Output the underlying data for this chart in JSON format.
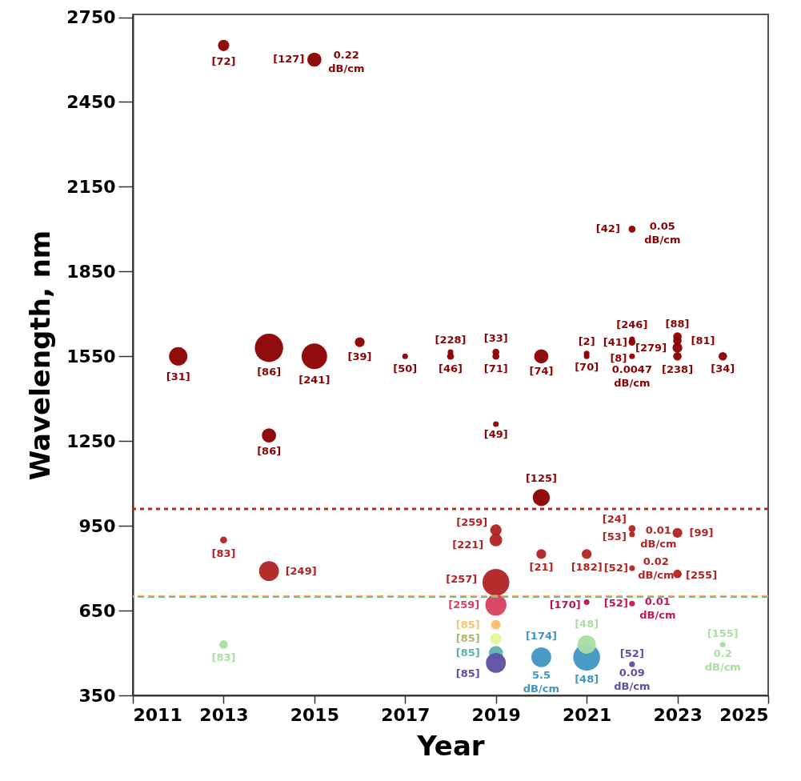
{
  "chart_data": {
    "type": "bubble",
    "xlabel": "Year",
    "ylabel": "Wavelength, nm",
    "xlim": [
      2011,
      2025
    ],
    "xticks": [
      2011,
      2013,
      2015,
      2017,
      2019,
      2021,
      2023,
      2025
    ],
    "ylim": [
      350,
      2760
    ],
    "yticks": [
      350,
      650,
      950,
      1250,
      1550,
      1850,
      2150,
      2450,
      2750
    ],
    "grid": false,
    "legend": false,
    "marker": "circle",
    "x": [
      2012,
      2013,
      2013,
      2013,
      2014,
      2014,
      2014,
      2015,
      2015,
      2016,
      2017,
      2018,
      2018,
      2019,
      2019,
      2019,
      2019,
      2019,
      2019,
      2019,
      2019,
      2019,
      2019,
      2019,
      2020,
      2020,
      2020,
      2020,
      2021,
      2021,
      2021,
      2021,
      2021,
      2021,
      2022,
      2022,
      2022,
      2022,
      2022,
      2022,
      2022,
      2022,
      2022,
      2023,
      2023,
      2023,
      2023,
      2023,
      2023,
      2024,
      2024
    ],
    "values": [
      1550,
      2650,
      900,
      530,
      1580,
      1270,
      790,
      2600,
      1550,
      1600,
      1550,
      1565,
      1550,
      1565,
      1550,
      1310,
      935,
      900,
      750,
      670,
      600,
      550,
      500,
      465,
      1550,
      1050,
      850,
      485,
      1560,
      1550,
      850,
      680,
      485,
      530,
      2000,
      1610,
      1600,
      1550,
      940,
      920,
      800,
      675,
      460,
      1620,
      1605,
      1580,
      1550,
      925,
      780,
      1550,
      530
    ],
    "sizes": [
      0.42,
      0.16,
      0.06,
      0.09,
      1,
      0.25,
      0.49,
      0.25,
      0.81,
      0.12,
      0.04,
      0.04,
      0.06,
      0.06,
      0.06,
      0.04,
      0.16,
      0.2,
      0.9,
      0.56,
      0.12,
      0.16,
      0.25,
      0.49,
      0.25,
      0.36,
      0.12,
      0.49,
      0.04,
      0.04,
      0.12,
      0.04,
      0.9,
      0.42,
      0.06,
      0.04,
      0.06,
      0.04,
      0.06,
      0.04,
      0.04,
      0.04,
      0.04,
      0.09,
      0.09,
      0.12,
      0.09,
      0.12,
      0.09,
      0.09,
      0.04
    ],
    "colors": [
      "#8b0000",
      "#8b0000",
      "#b22222",
      "#abdda4",
      "#8b0000",
      "#8b0000",
      "#b22222",
      "#8b0000",
      "#8b0000",
      "#8b0000",
      "#8b0000",
      "#8b0000",
      "#8b0000",
      "#8b0000",
      "#8b0000",
      "#8b0000",
      "#b22222",
      "#b22222",
      "#b22222",
      "#d6405e",
      "#fdbf6f",
      "#e6f598",
      "#5ab4ac",
      "#5e4fa2",
      "#8b0000",
      "#8b0000",
      "#b22222",
      "#3f96c3",
      "#8b0000",
      "#8b0000",
      "#b22222",
      "#b0184f",
      "#3f96c3",
      "#abdda4",
      "#8b0000",
      "#8b0000",
      "#8b0000",
      "#8b0000",
      "#b22222",
      "#b22222",
      "#b22222",
      "#c2185b",
      "#5e4fa2",
      "#8b0000",
      "#8b0000",
      "#8b0000",
      "#8b0000",
      "#b22222",
      "#b22222",
      "#8b0000",
      "#abdda4"
    ],
    "ref_lines": [
      {
        "axis": "y",
        "value": 1010,
        "color": "#c81e1e",
        "line_style": "dotted"
      },
      {
        "axis": "y",
        "value": 702,
        "color": "#fdae61",
        "line_style": "dashed"
      },
      {
        "axis": "y",
        "value": 698,
        "color": "#66c2a5",
        "line_style": "dashed"
      }
    ],
    "annotations": [
      {
        "text": "[31]",
        "x": 2012,
        "y": 1550
      },
      {
        "text": "[72]",
        "x": 2013,
        "y": 2650
      },
      {
        "text": "[127]",
        "x": 2015,
        "y": 2600
      },
      {
        "text": "0.22 dB/cm",
        "x": 2015,
        "y": 2600
      },
      {
        "text": "[86]",
        "x": 2014,
        "y": 1580
      },
      {
        "text": "[86]",
        "x": 2014,
        "y": 1270
      },
      {
        "text": "[249]",
        "x": 2014,
        "y": 790
      },
      {
        "text": "[83]",
        "x": 2013,
        "y": 900
      },
      {
        "text": "[83]",
        "x": 2013,
        "y": 530
      },
      {
        "text": "[241]",
        "x": 2015,
        "y": 1550
      },
      {
        "text": "[39]",
        "x": 2016,
        "y": 1600
      },
      {
        "text": "[50]",
        "x": 2017,
        "y": 1550
      },
      {
        "text": "[228]",
        "x": 2018,
        "y": 1565
      },
      {
        "text": "[46]",
        "x": 2018,
        "y": 1550
      },
      {
        "text": "[33]",
        "x": 2019,
        "y": 1565
      },
      {
        "text": "[71]",
        "x": 2019,
        "y": 1550
      },
      {
        "text": "[49]",
        "x": 2019,
        "y": 1310
      },
      {
        "text": "[259]",
        "x": 2019,
        "y": 935
      },
      {
        "text": "[221]",
        "x": 2019,
        "y": 900
      },
      {
        "text": "[257]",
        "x": 2019,
        "y": 750
      },
      {
        "text": "[259]",
        "x": 2019,
        "y": 670
      },
      {
        "text": "[85]",
        "x": 2019,
        "y": 600
      },
      {
        "text": "[85]",
        "x": 2019,
        "y": 550
      },
      {
        "text": "[85]",
        "x": 2019,
        "y": 500
      },
      {
        "text": "[85]",
        "x": 2019,
        "y": 465
      },
      {
        "text": "[74]",
        "x": 2020,
        "y": 1550
      },
      {
        "text": "[125]",
        "x": 2020,
        "y": 1050
      },
      {
        "text": "[21]",
        "x": 2020,
        "y": 850
      },
      {
        "text": "[174]",
        "x": 2020,
        "y": 485
      },
      {
        "text": "5.5 dB/cm",
        "x": 2020,
        "y": 485
      },
      {
        "text": "[2]",
        "x": 2021,
        "y": 1560
      },
      {
        "text": "[70]",
        "x": 2021,
        "y": 1550
      },
      {
        "text": "[182]",
        "x": 2021,
        "y": 850
      },
      {
        "text": "[170]",
        "x": 2021,
        "y": 680
      },
      {
        "text": "[48]",
        "x": 2021,
        "y": 530
      },
      {
        "text": "[48]",
        "x": 2021,
        "y": 485
      },
      {
        "text": "[42]",
        "x": 2022,
        "y": 2000
      },
      {
        "text": "0.05 dB/cm",
        "x": 2022,
        "y": 2000
      },
      {
        "text": "[246]",
        "x": 2022,
        "y": 1610
      },
      {
        "text": "[41]",
        "x": 2022,
        "y": 1600
      },
      {
        "text": "[8]",
        "x": 2022,
        "y": 1550
      },
      {
        "text": "0.0047 dB/cm",
        "x": 2022,
        "y": 1550
      },
      {
        "text": "[24]",
        "x": 2022,
        "y": 940
      },
      {
        "text": "[53]",
        "x": 2022,
        "y": 920
      },
      {
        "text": "0.01 dB/cm",
        "x": 2022,
        "y": 920
      },
      {
        "text": "[99]",
        "x": 2023,
        "y": 925
      },
      {
        "text": "[52]",
        "x": 2022,
        "y": 800
      },
      {
        "text": "0.02 dB/cm",
        "x": 2022,
        "y": 800
      },
      {
        "text": "[255]",
        "x": 2023,
        "y": 780
      },
      {
        "text": "[52]",
        "x": 2022,
        "y": 675
      },
      {
        "text": "0.01 dB/cm",
        "x": 2022,
        "y": 675
      },
      {
        "text": "[52]",
        "x": 2022,
        "y": 460
      },
      {
        "text": "0.09 dB/cm",
        "x": 2022,
        "y": 460
      },
      {
        "text": "[88]",
        "x": 2023,
        "y": 1620
      },
      {
        "text": "[279]",
        "x": 2023,
        "y": 1580
      },
      {
        "text": "[81]",
        "x": 2023,
        "y": 1605
      },
      {
        "text": "[238]",
        "x": 2023,
        "y": 1550
      },
      {
        "text": "[34]",
        "x": 2024,
        "y": 1550
      },
      {
        "text": "[155]",
        "x": 2024,
        "y": 530
      },
      {
        "text": "0.2 dB/cm",
        "x": 2024,
        "y": 530
      }
    ]
  }
}
